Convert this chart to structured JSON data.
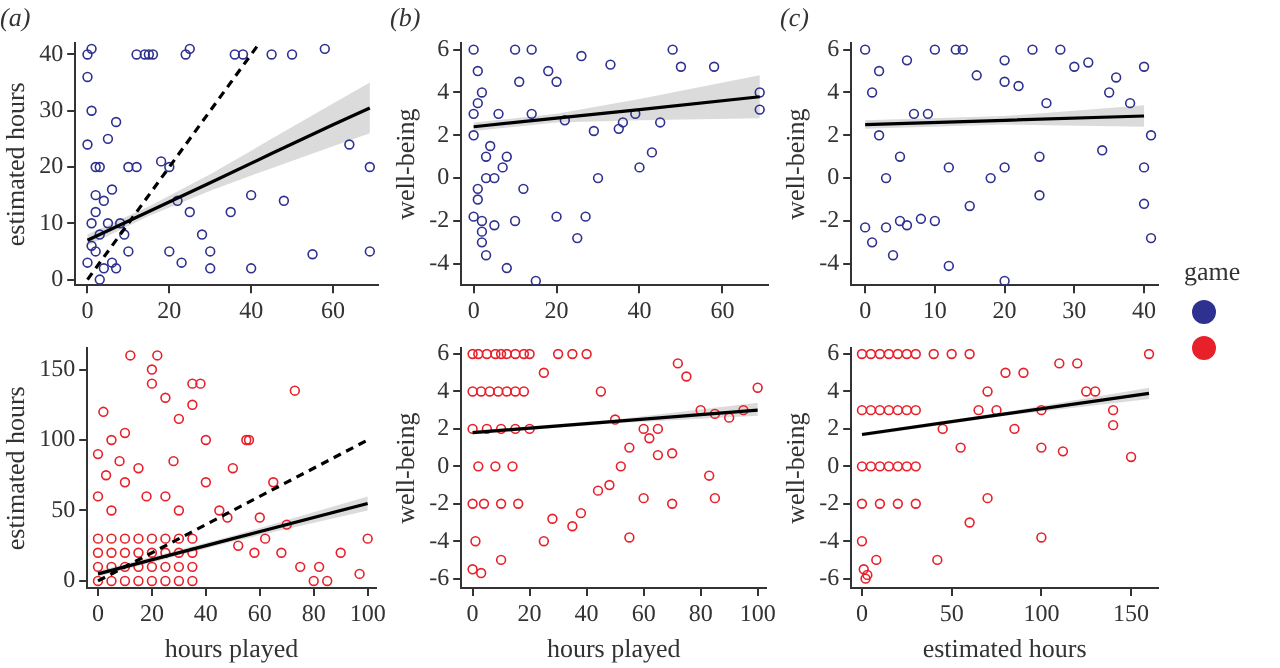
{
  "chart_data": [
    {
      "type": "scatter",
      "title": "(a)",
      "ylabel": "estimated hours",
      "xlim": [
        -3,
        71
      ],
      "ylim": [
        -1,
        42
      ],
      "xticks": [
        0,
        20,
        40,
        60
      ],
      "yticks": [
        0,
        10,
        20,
        30,
        40
      ],
      "grid": false,
      "legend": false,
      "series": [
        {
          "type": "scatter",
          "marker": "circle",
          "color": "#2e318f",
          "x": [
            0,
            0,
            1,
            2,
            3,
            1,
            2,
            5,
            8,
            4,
            6,
            3,
            0,
            1,
            10,
            12,
            7,
            2,
            5,
            15,
            18,
            20,
            22,
            25,
            28,
            30,
            35,
            40,
            48,
            55,
            69,
            0,
            1,
            12,
            14,
            16,
            24,
            25,
            36,
            38,
            45,
            50,
            58,
            10,
            7,
            3,
            20,
            23,
            30,
            40,
            69,
            64,
            2,
            4,
            6,
            9
          ],
          "values": [
            40,
            36,
            41,
            20,
            20,
            10,
            5,
            10,
            10,
            2,
            3,
            0,
            24,
            30,
            20,
            20,
            28,
            15,
            25,
            40,
            21,
            20,
            14,
            12,
            8,
            5,
            12,
            15,
            14,
            4.5,
            5,
            3,
            6,
            40,
            40,
            40,
            40,
            41,
            40,
            40,
            40,
            40,
            41,
            5,
            2,
            8,
            5,
            3,
            2,
            2,
            20,
            24,
            12,
            14,
            16,
            8
          ]
        },
        {
          "type": "line",
          "marker": "none",
          "color": "#000000",
          "x": [
            0,
            15,
            30,
            45,
            60,
            69
          ],
          "values": [
            7,
            12.1,
            17.2,
            22.4,
            27.5,
            30.5
          ],
          "lower": [
            6,
            11.3,
            15.8,
            19.8,
            23.7,
            26
          ],
          "upper": [
            8,
            13,
            18.7,
            25,
            31.3,
            35
          ]
        },
        {
          "type": "line",
          "marker": "none",
          "line_style": "dashed",
          "color": "#000000",
          "x": [
            0,
            42
          ],
          "values": [
            0,
            42
          ]
        }
      ]
    },
    {
      "type": "scatter",
      "title": "(b)",
      "ylabel": "well-being",
      "xlim": [
        -3,
        71
      ],
      "ylim": [
        -5,
        6.3
      ],
      "xticks": [
        0,
        20,
        40,
        60
      ],
      "yticks": [
        -4,
        -2,
        0,
        2,
        4,
        6
      ],
      "grid": false,
      "legend": false,
      "series": [
        {
          "type": "scatter",
          "marker": "circle",
          "color": "#2e318f",
          "x": [
            0,
            1,
            2,
            0,
            3,
            5,
            1,
            2,
            8,
            10,
            12,
            15,
            20,
            25,
            27,
            30,
            35,
            40,
            48,
            50,
            58,
            69,
            69,
            0,
            1,
            2,
            3,
            5,
            7,
            10,
            14,
            18,
            22,
            26,
            29,
            33,
            36,
            39,
            43,
            45,
            0,
            2,
            4,
            1,
            3,
            8,
            14,
            6,
            11,
            20
          ],
          "values": [
            6,
            5,
            4,
            2,
            1,
            0,
            -1,
            -2,
            -4.2,
            -2,
            -0.5,
            -4.8,
            -1.8,
            -2.8,
            -1.8,
            0,
            2.3,
            0.5,
            6,
            5.2,
            5.2,
            3.2,
            4,
            3,
            3.5,
            -3,
            -3.6,
            -2.2,
            0.5,
            6,
            6,
            5,
            2.7,
            5.7,
            2.2,
            5.3,
            2.6,
            3,
            1.2,
            2.6,
            -1.8,
            -2.5,
            1.5,
            -0.5,
            0,
            1,
            3,
            3,
            4.5,
            4.5
          ]
        },
        {
          "type": "line",
          "marker": "none",
          "color": "#000000",
          "x": [
            0,
            20,
            40,
            69
          ],
          "values": [
            2.4,
            2.8,
            3.2,
            3.8
          ],
          "lower": [
            2.2,
            2.6,
            2.7,
            2.8
          ],
          "upper": [
            2.6,
            3,
            3.7,
            4.8
          ]
        }
      ]
    },
    {
      "type": "scatter",
      "title": "(c)",
      "ylabel": "well-being",
      "legend_title": "game",
      "xlim": [
        -2,
        42
      ],
      "ylim": [
        -5,
        6.3
      ],
      "xticks": [
        0,
        10,
        20,
        30,
        40
      ],
      "yticks": [
        -4,
        -2,
        0,
        2,
        4,
        6
      ],
      "grid": false,
      "legend": false,
      "series": [
        {
          "type": "scatter",
          "marker": "circle",
          "color": "#2e318f",
          "x": [
            0,
            1,
            2,
            3,
            4,
            5,
            6,
            8,
            10,
            10,
            12,
            14,
            15,
            16,
            20,
            20,
            20,
            20,
            22,
            24,
            25,
            25,
            28,
            30,
            32,
            34,
            36,
            38,
            40,
            40,
            40,
            41,
            41,
            2,
            3,
            5,
            7,
            1,
            0,
            6,
            9,
            12,
            13,
            18,
            26,
            35
          ],
          "values": [
            6,
            4,
            2,
            -2.3,
            -3.6,
            -2,
            -2.2,
            -1.9,
            6,
            -2,
            -4.1,
            6,
            -1.3,
            4.8,
            5.5,
            4.5,
            0.5,
            -4.8,
            4.3,
            6,
            -0.8,
            1,
            6,
            5.2,
            5.4,
            1.3,
            4.7,
            3.5,
            5.2,
            -1.2,
            0.5,
            -2.8,
            2,
            5,
            0,
            1,
            3,
            -3,
            -2.3,
            5.5,
            3,
            0.5,
            6,
            0,
            3.5,
            4
          ]
        },
        {
          "type": "line",
          "marker": "none",
          "color": "#000000",
          "x": [
            0,
            20,
            40
          ],
          "values": [
            2.5,
            2.7,
            2.9
          ],
          "lower": [
            2.3,
            2.5,
            2.4
          ],
          "upper": [
            2.7,
            2.9,
            3.4
          ]
        }
      ]
    },
    {
      "type": "scatter",
      "xlabel": "hours played",
      "ylabel": "estimated hours",
      "xlim": [
        -4,
        103
      ],
      "ylim": [
        -5,
        165
      ],
      "xticks": [
        0,
        20,
        40,
        60,
        80,
        100
      ],
      "yticks": [
        0,
        50,
        100,
        150
      ],
      "grid": false,
      "legend": false,
      "series": [
        {
          "type": "scatter",
          "marker": "circle",
          "color": "#e8202a",
          "x": [
            0,
            2,
            5,
            10,
            15,
            20,
            25,
            30,
            35,
            0,
            3,
            8,
            12,
            20,
            22,
            25,
            28,
            35,
            38,
            40,
            50,
            55,
            56,
            60,
            65,
            70,
            73,
            80,
            82,
            85,
            90,
            97,
            100,
            45,
            48,
            52,
            58,
            62,
            68,
            75,
            30,
            40,
            10,
            5,
            18,
            0,
            5,
            10,
            15,
            20,
            25,
            30,
            35,
            0,
            5,
            10,
            15,
            20,
            25,
            30,
            35,
            0,
            5,
            10,
            15,
            20,
            25,
            30,
            35,
            0,
            5,
            10,
            15,
            20,
            25,
            30,
            35
          ],
          "values": [
            90,
            120,
            100,
            105,
            80,
            140,
            130,
            115,
            125,
            60,
            75,
            85,
            160,
            150,
            160,
            60,
            85,
            140,
            140,
            100,
            80,
            100,
            100,
            45,
            70,
            40,
            135,
            0,
            10,
            0,
            20,
            5,
            30,
            50,
            45,
            25,
            20,
            30,
            20,
            10,
            50,
            70,
            70,
            50,
            60,
            0,
            0,
            0,
            0,
            0,
            0,
            0,
            0,
            10,
            10,
            10,
            10,
            10,
            10,
            10,
            10,
            20,
            20,
            20,
            20,
            20,
            20,
            20,
            20,
            30,
            30,
            30,
            30,
            30,
            30,
            30,
            30
          ]
        },
        {
          "type": "line",
          "marker": "none",
          "color": "#000000",
          "x": [
            0,
            50,
            100
          ],
          "values": [
            5,
            30,
            55
          ],
          "lower": [
            3,
            28,
            50
          ],
          "upper": [
            7,
            32,
            60
          ]
        },
        {
          "type": "line",
          "marker": "none",
          "line_style": "dashed",
          "color": "#000000",
          "x": [
            0,
            100
          ],
          "values": [
            0,
            100
          ]
        }
      ]
    },
    {
      "type": "scatter",
      "xlabel": "hours played",
      "ylabel": "well-being",
      "xlim": [
        -4,
        103
      ],
      "ylim": [
        -6.5,
        6.3
      ],
      "xticks": [
        0,
        20,
        40,
        60,
        80,
        100
      ],
      "yticks": [
        -6,
        -4,
        -2,
        0,
        2,
        4,
        6
      ],
      "grid": false,
      "legend": false,
      "series": [
        {
          "type": "scatter",
          "marker": "circle",
          "color": "#e8202a",
          "x": [
            0,
            2,
            5,
            8,
            10,
            12,
            15,
            18,
            20,
            0,
            3,
            6,
            9,
            12,
            15,
            18,
            0,
            5,
            10,
            15,
            20,
            2,
            8,
            14,
            0,
            4,
            10,
            16,
            1,
            25,
            30,
            35,
            40,
            45,
            50,
            55,
            60,
            65,
            70,
            72,
            75,
            80,
            85,
            90,
            95,
            100,
            55,
            62,
            70,
            28,
            38,
            44,
            52,
            60,
            83,
            85,
            35,
            25,
            48,
            65,
            0,
            3,
            10
          ],
          "values": [
            6,
            6,
            6,
            6,
            6,
            6,
            6,
            6,
            6,
            4,
            4,
            4,
            4,
            4,
            4,
            4,
            2,
            2,
            2,
            2,
            2,
            0,
            0,
            0,
            -2,
            -2,
            -2,
            -2,
            -4,
            5,
            6,
            6,
            6,
            4,
            2.5,
            -3.8,
            -1.7,
            2,
            -2,
            5.5,
            4.8,
            3,
            2.8,
            2.6,
            3,
            4.2,
            1,
            1.5,
            0.7,
            -2.8,
            -2.5,
            -1.3,
            0,
            2,
            -0.5,
            -1.7,
            -3.2,
            -4,
            -1,
            0.6,
            -5.5,
            -5.7,
            -5
          ]
        },
        {
          "type": "line",
          "marker": "none",
          "color": "#000000",
          "x": [
            0,
            50,
            100
          ],
          "values": [
            1.8,
            2.4,
            3
          ],
          "lower": [
            1.7,
            2.3,
            2.7
          ],
          "upper": [
            1.9,
            2.5,
            3.4
          ]
        }
      ]
    },
    {
      "type": "scatter",
      "xlabel": "estimated hours",
      "ylabel": "well-being",
      "xlim": [
        -6,
        165
      ],
      "ylim": [
        -6.5,
        6.3
      ],
      "xticks": [
        0,
        50,
        100,
        150
      ],
      "yticks": [
        -6,
        -4,
        -2,
        0,
        2,
        4,
        6
      ],
      "grid": false,
      "legend": false,
      "series": [
        {
          "type": "scatter",
          "marker": "circle",
          "color": "#e8202a",
          "x": [
            0,
            5,
            10,
            15,
            20,
            25,
            30,
            0,
            5,
            10,
            15,
            20,
            25,
            30,
            0,
            5,
            10,
            15,
            20,
            25,
            30,
            0,
            10,
            20,
            30,
            0,
            8,
            2,
            40,
            50,
            60,
            70,
            80,
            90,
            100,
            110,
            120,
            130,
            140,
            150,
            160,
            45,
            55,
            65,
            75,
            85,
            100,
            112,
            125,
            140,
            42,
            60,
            70,
            100,
            1,
            3
          ],
          "values": [
            6,
            6,
            6,
            6,
            6,
            6,
            6,
            3,
            3,
            3,
            3,
            3,
            3,
            3,
            0,
            0,
            0,
            0,
            0,
            0,
            0,
            -2,
            -2,
            -2,
            -2,
            -4,
            -5,
            -6,
            6,
            6,
            6,
            4,
            5,
            5,
            3,
            5.5,
            5.5,
            4,
            3,
            0.5,
            6,
            2,
            1,
            3,
            3,
            2,
            1,
            0.8,
            4,
            2.2,
            -5,
            -3,
            -1.7,
            -3.8,
            -5.5,
            -5.8
          ]
        },
        {
          "type": "line",
          "marker": "none",
          "color": "#000000",
          "x": [
            0,
            80,
            160
          ],
          "values": [
            1.7,
            2.8,
            3.9
          ],
          "lower": [
            1.6,
            2.7,
            3.6
          ],
          "upper": [
            1.8,
            2.9,
            4.2
          ]
        }
      ]
    }
  ]
}
